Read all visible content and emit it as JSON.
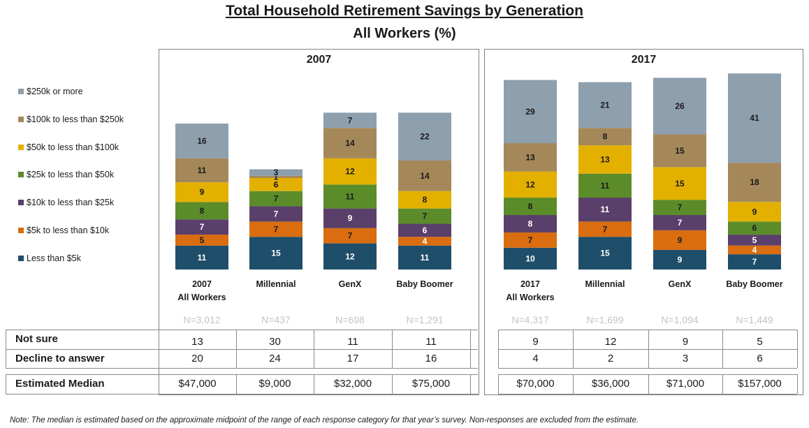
{
  "title": "Total Household Retirement Savings by Generation",
  "subtitle": "All Workers (%)",
  "colors": {
    "less_than_5k": "#1f4e6b",
    "5k_10k": "#d96d0f",
    "10k_25k": "#5a3f6b",
    "25k_50k": "#5c8c2a",
    "50k_100k": "#e3b000",
    "100k_250k": "#a5885a",
    "250k_plus": "#8e9fae"
  },
  "legend": [
    {
      "label": "$250k or more",
      "color": "#8e9fae"
    },
    {
      "label": "$100k to less than $250k",
      "color": "#a5885a"
    },
    {
      "label": "$50k to less than $100k",
      "color": "#e3b000"
    },
    {
      "label": "$25k to less than $50k",
      "color": "#5c8c2a"
    },
    {
      "label": "$10k to less than $25k",
      "color": "#5a3f6b"
    },
    {
      "label": "$5k to less than $10k",
      "color": "#d96d0f"
    },
    {
      "label": "Less than $5k",
      "color": "#1f4e6b"
    }
  ],
  "row_labels": {
    "not_sure": "Not sure",
    "decline": "Decline to answer",
    "median": "Estimated Median"
  },
  "note": "Note: The median is estimated based on the approximate midpoint of the range of each response category for that year’s survey.  Non-responses are excluded from the estimate.",
  "chart_data": [
    {
      "type": "bar",
      "stacked": true,
      "title": "2007",
      "categories": [
        "2007\nAll Workers",
        "Millennial",
        "GenX",
        "Baby Boomer"
      ],
      "series": [
        {
          "name": "Less than $5k",
          "values": [
            11,
            15,
            12,
            11
          ]
        },
        {
          "name": "$5k to less than $10k",
          "values": [
            5,
            7,
            7,
            4
          ]
        },
        {
          "name": "$10k to less than $25k",
          "values": [
            7,
            7,
            9,
            6
          ]
        },
        {
          "name": "$25k to less than $50k",
          "values": [
            8,
            7,
            11,
            7
          ]
        },
        {
          "name": "$50k to less than $100k",
          "values": [
            9,
            6,
            12,
            8
          ]
        },
        {
          "name": "$100k to less than $250k",
          "values": [
            11,
            1,
            14,
            14
          ]
        },
        {
          "name": "$250k or more",
          "values": [
            16,
            3,
            7,
            22
          ]
        }
      ],
      "n": [
        "N=3,012",
        "N=437",
        "N=698",
        "N=1,291"
      ],
      "not_sure": [
        "13",
        "30",
        "11",
        "11"
      ],
      "decline": [
        "20",
        "24",
        "17",
        "16"
      ],
      "median": [
        "$47,000",
        "$9,000",
        "$32,000",
        "$75,000"
      ]
    },
    {
      "type": "bar",
      "stacked": true,
      "title": "2017",
      "categories": [
        "2017\nAll Workers",
        "Millennial",
        "GenX",
        "Baby Boomer"
      ],
      "series": [
        {
          "name": "Less than $5k",
          "values": [
            10,
            15,
            9,
            7
          ]
        },
        {
          "name": "$5k to less than $10k",
          "values": [
            7,
            7,
            9,
            4
          ]
        },
        {
          "name": "$10k to less than $25k",
          "values": [
            8,
            11,
            7,
            5
          ]
        },
        {
          "name": "$25k to less than $50k",
          "values": [
            8,
            11,
            7,
            6
          ]
        },
        {
          "name": "$50k to less than $100k",
          "values": [
            12,
            13,
            15,
            9
          ]
        },
        {
          "name": "$100k to less than $250k",
          "values": [
            13,
            8,
            15,
            18
          ]
        },
        {
          "name": "$250k or more",
          "values": [
            29,
            21,
            26,
            41
          ]
        }
      ],
      "n": [
        "N=4,317",
        "N=1,699",
        "N=1,094",
        "N=1,449"
      ],
      "not_sure": [
        "9",
        "12",
        "9",
        "5"
      ],
      "decline": [
        "4",
        "2",
        "3",
        "6"
      ],
      "median": [
        "$70,000",
        "$36,000",
        "$71,000",
        "$157,000"
      ]
    }
  ]
}
